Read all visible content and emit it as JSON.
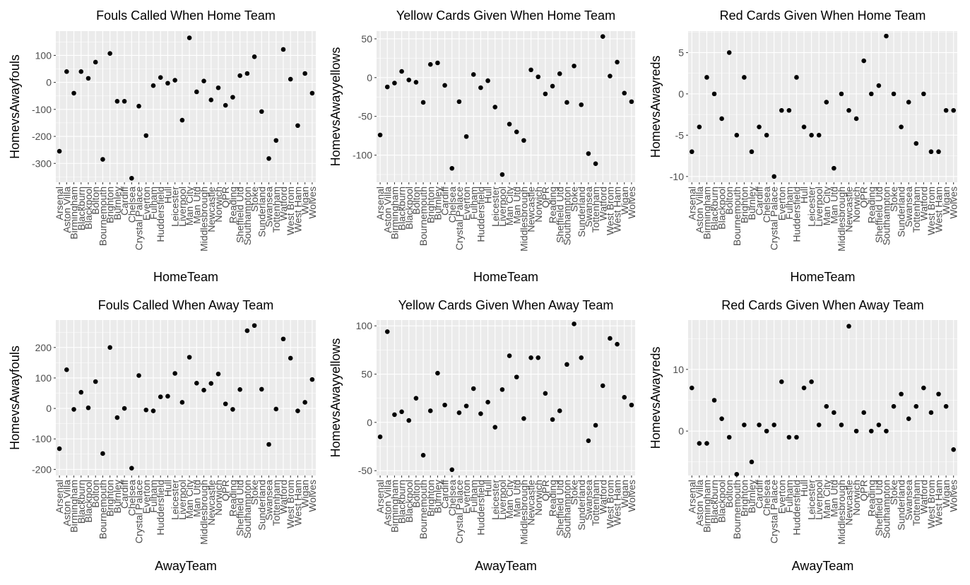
{
  "teams": [
    "Arsenal",
    "Aston Villa",
    "Birmingham",
    "Blackburn",
    "Blackpool",
    "Bolton",
    "Bournemouth",
    "Brighton",
    "Burnley",
    "Cardiff",
    "Chelsea",
    "Crystal Palace",
    "Everton",
    "Fulham",
    "Huddersfield",
    "Hull",
    "Leicester",
    "Liverpool",
    "Man City",
    "Man Utd",
    "Middlesbrough",
    "Newcastle",
    "Norwich",
    "QPR",
    "Reading",
    "Sheffield Utd",
    "Southampton",
    "Stoke",
    "Sunderland",
    "Swansea",
    "Tottenham",
    "Watford",
    "West Brom",
    "West Ham",
    "Wigan",
    "Wolves"
  ],
  "colors": {
    "panel_bg": "#ebebeb",
    "grid_major": "#ffffff",
    "point": "#000000",
    "tick_text": "#4d4d4d",
    "label_text": "#000000"
  },
  "chart_data": [
    {
      "type": "scatter",
      "title": "Fouls Called When Home Team",
      "xlabel": "HomeTeam",
      "ylabel": "HomevsAwayfouls",
      "ylim": [
        -370,
        190
      ],
      "yticks": [
        -300,
        -200,
        -100,
        0,
        100
      ],
      "ytick_labels": [
        "-300",
        "-200",
        "-100",
        "0",
        "100"
      ],
      "values": [
        -255,
        40,
        -40,
        40,
        15,
        75,
        -285,
        107,
        -70,
        -70,
        -355,
        -88,
        -197,
        -12,
        18,
        -3,
        8,
        -140,
        165,
        -35,
        5,
        -65,
        -20,
        -85,
        -55,
        25,
        33,
        95,
        -108,
        -282,
        -215,
        122,
        12,
        -160,
        33,
        -40
      ]
    },
    {
      "type": "scatter",
      "title": "Yellow Cards Given When Home Team",
      "xlabel": "HomeTeam",
      "ylabel": "HomevsAwayyellows",
      "ylim": [
        -135,
        60
      ],
      "yticks": [
        -100,
        -50,
        0,
        50
      ],
      "ytick_labels": [
        "-100",
        "-50",
        "0",
        "50"
      ],
      "values": [
        -74,
        -12,
        -7,
        8,
        -3,
        -6,
        -32,
        17,
        19,
        -10,
        -117,
        -31,
        -76,
        4,
        -13,
        -4,
        -38,
        -125,
        -60,
        -70,
        -81,
        10,
        1,
        -21,
        -11,
        5,
        -32,
        15,
        -35,
        -98,
        -111,
        53,
        2,
        20,
        -20,
        -31
      ]
    },
    {
      "type": "scatter",
      "title": "Red Cards Given When Home Team",
      "xlabel": "HomeTeam",
      "ylabel": "HomevsAwayreds",
      "ylim": [
        -10.7,
        7.6
      ],
      "yticks": [
        -10,
        -5,
        0,
        5
      ],
      "ytick_labels": [
        "-10",
        "-5",
        "0",
        "5"
      ],
      "values": [
        -7,
        -4,
        2,
        0,
        -3,
        5,
        -5,
        2,
        -7,
        -4,
        -5,
        -10,
        -2,
        -2,
        2,
        -4,
        -5,
        -5,
        -1,
        -9,
        0,
        -2,
        -3,
        4,
        0,
        1,
        7,
        0,
        -4,
        -1,
        -6,
        0,
        -7,
        -7,
        -2,
        -2
      ]
    },
    {
      "type": "scatter",
      "title": "Fouls Called When Away Team",
      "xlabel": "AwayTeam",
      "ylabel": "HomevsAwayfouls",
      "ylim": [
        -220,
        290
      ],
      "yticks": [
        -200,
        -100,
        0,
        100,
        200
      ],
      "ytick_labels": [
        "-200",
        "-100",
        "0",
        "100",
        "200"
      ],
      "values": [
        -132,
        127,
        -3,
        53,
        2,
        88,
        -148,
        200,
        -30,
        0,
        -196,
        108,
        -5,
        -8,
        38,
        40,
        115,
        20,
        168,
        83,
        60,
        82,
        113,
        15,
        -3,
        62,
        255,
        272,
        63,
        -118,
        -2,
        228,
        165,
        -8,
        20,
        95
      ]
    },
    {
      "type": "scatter",
      "title": "Yellow Cards Given When Away Team",
      "xlabel": "AwayTeam",
      "ylabel": "HomevsAwayyellows",
      "ylim": [
        -55,
        106
      ],
      "yticks": [
        -50,
        0,
        50,
        100
      ],
      "ytick_labels": [
        "-50",
        "0",
        "50",
        "100"
      ],
      "values": [
        -15,
        94,
        8,
        11,
        2,
        25,
        -34,
        12,
        51,
        18,
        -49,
        10,
        17,
        35,
        9,
        21,
        -5,
        34,
        69,
        47,
        4,
        67,
        67,
        30,
        3,
        12,
        60,
        102,
        67,
        -19,
        -3,
        38,
        87,
        81,
        26,
        18
      ]
    },
    {
      "type": "scatter",
      "title": "Red Cards Given When Away Team",
      "xlabel": "AwayTeam",
      "ylabel": "HomevsAwayreds",
      "ylim": [
        -7.2,
        18.0
      ],
      "yticks": [
        0,
        10
      ],
      "ytick_labels": [
        "0",
        "10"
      ],
      "values": [
        7,
        -2,
        -2,
        5,
        2,
        -1,
        -7,
        1,
        -5,
        1,
        0,
        1,
        8,
        -1,
        -1,
        7,
        8,
        1,
        4,
        3,
        1,
        17,
        0,
        3,
        0,
        1,
        0,
        4,
        6,
        2,
        4,
        7,
        3,
        6,
        4,
        -3
      ]
    }
  ]
}
